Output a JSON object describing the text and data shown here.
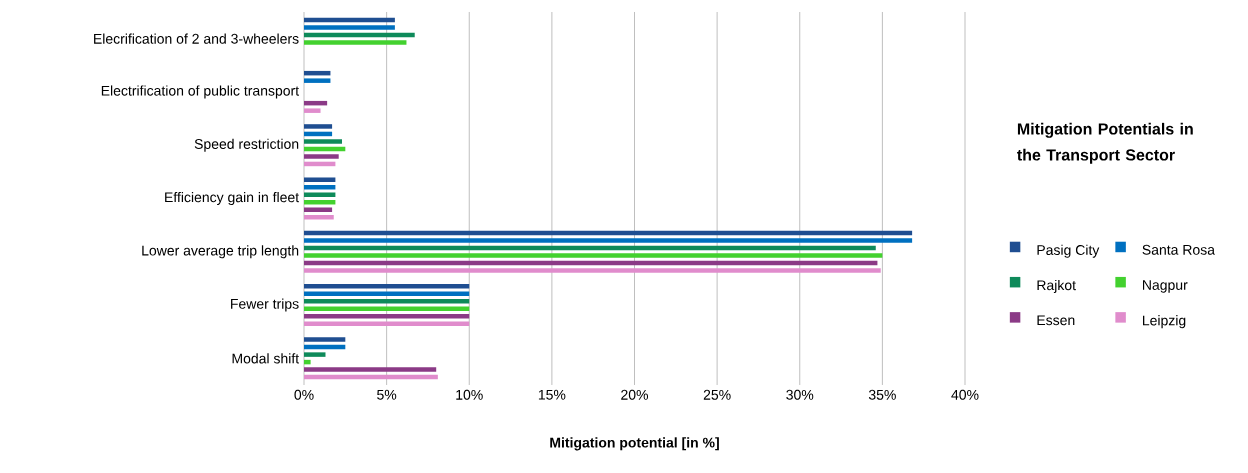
{
  "chart_data": {
    "type": "bar",
    "orientation": "horizontal",
    "title": "Mitigation Potentials in the Transport Sector",
    "xlabel": "Mitigation potential [in %]",
    "categories": [
      "Elecrification of 2 and 3-wheelers",
      "Electrification of public transport",
      "Speed restriction",
      "Efficiency gain in fleet",
      "Lower average trip length",
      "Fewer trips",
      "Modal shift"
    ],
    "series": [
      {
        "name": "Pasig City",
        "color": "#1f4e91",
        "values": [
          5.5,
          1.6,
          1.7,
          1.9,
          36.8,
          10.0,
          2.5
        ]
      },
      {
        "name": "Santa Rosa",
        "color": "#0070c0",
        "values": [
          5.5,
          1.6,
          1.7,
          1.9,
          36.8,
          10.0,
          2.5
        ]
      },
      {
        "name": "Rajkot",
        "color": "#0e8a5a",
        "values": [
          6.7,
          null,
          2.3,
          1.9,
          34.6,
          10.0,
          1.3
        ]
      },
      {
        "name": "Nagpur",
        "color": "#43d12f",
        "values": [
          6.2,
          null,
          2.5,
          1.9,
          35.0,
          10.0,
          0.4
        ]
      },
      {
        "name": "Essen",
        "color": "#8b3a86",
        "values": [
          null,
          1.4,
          2.1,
          1.7,
          34.7,
          10.0,
          8.0
        ]
      },
      {
        "name": "Leipzig",
        "color": "#e08ccc",
        "values": [
          null,
          1.0,
          1.9,
          1.8,
          34.9,
          10.0,
          8.1
        ]
      }
    ],
    "xlim": [
      0,
      40
    ],
    "xticks": [
      {
        "value": 0,
        "label": "0%"
      },
      {
        "value": 5,
        "label": "5%"
      },
      {
        "value": 10,
        "label": "10%"
      },
      {
        "value": 15,
        "label": "15%"
      },
      {
        "value": 20,
        "label": "20%"
      },
      {
        "value": 25,
        "label": "25%"
      },
      {
        "value": 30,
        "label": "30%"
      },
      {
        "value": 35,
        "label": "35%"
      },
      {
        "value": 40,
        "label": "40%"
      }
    ],
    "grid": "x",
    "legend": "right"
  }
}
